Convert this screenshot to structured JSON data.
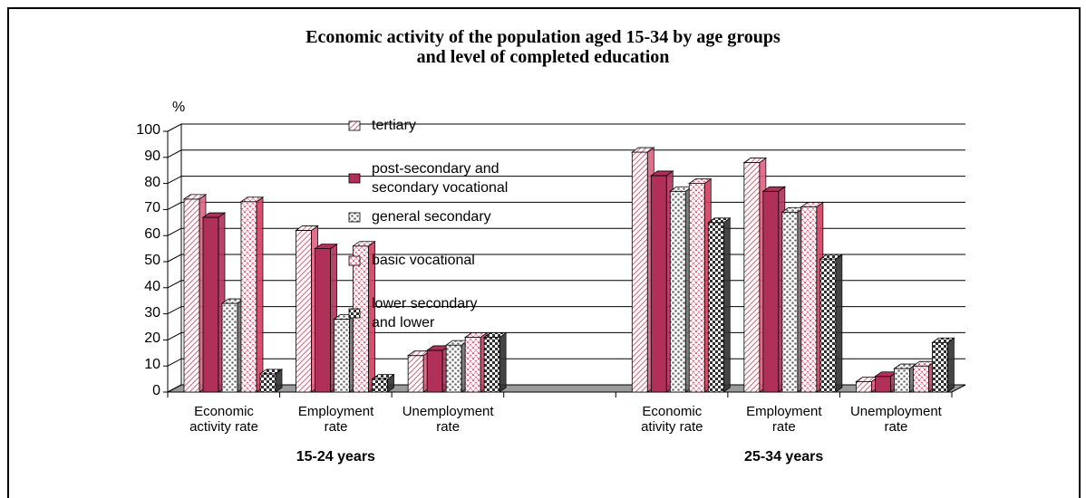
{
  "chart_data": {
    "type": "bar3d",
    "title": "Economic activity of the population aged 15-34 by age groups\nand level of completed education",
    "y_label": "%",
    "categories": [
      "Economic\nactivity rate",
      "Employment\nrate",
      "Unemployment\nrate",
      null,
      "Economic\nativity rate",
      "Employment\nrate",
      "Unemployment\nrate"
    ],
    "groups": [
      "15-24 years",
      "25-34 years"
    ],
    "series": [
      {
        "name": "tertiary",
        "color": "#e06080",
        "values": [
          74,
          62,
          14,
          null,
          92,
          88,
          4
        ]
      },
      {
        "name": "post-secondary and\nsecondary vocational",
        "color": "#b0305a",
        "values": [
          67,
          55,
          16,
          null,
          83,
          77,
          6
        ]
      },
      {
        "name": "general secondary",
        "color": "#707070",
        "values": [
          34,
          28,
          18,
          null,
          77,
          69,
          9
        ]
      },
      {
        "name": "basic vocational",
        "color": "#d04060",
        "values": [
          73,
          56,
          21,
          null,
          80,
          71,
          10
        ]
      },
      {
        "name": "lower secondary\nand lower",
        "color": "#303030",
        "values": [
          7,
          5,
          21,
          null,
          65,
          51,
          19
        ]
      }
    ],
    "ylim": [
      0,
      100
    ],
    "yticks": [
      0,
      10,
      20,
      30,
      40,
      50,
      60,
      70,
      80,
      90,
      100
    ],
    "grid": true
  }
}
